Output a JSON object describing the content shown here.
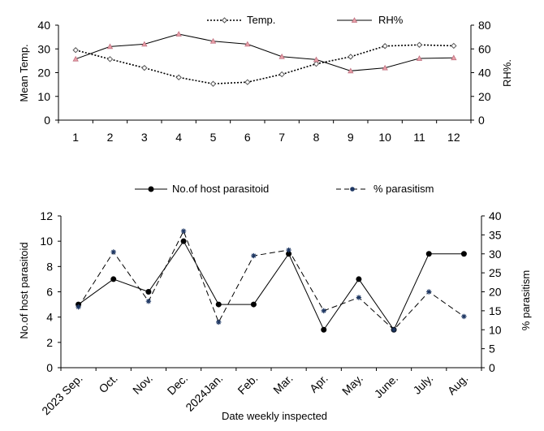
{
  "chart_data": [
    {
      "type": "line",
      "x": [
        1,
        2,
        3,
        4,
        5,
        6,
        7,
        8,
        9,
        10,
        11,
        12
      ],
      "xticks": [
        "1",
        "2",
        "3",
        "4",
        "5",
        "6",
        "7",
        "8",
        "9",
        "10",
        "11",
        "12"
      ],
      "series": [
        {
          "name": "Temp.",
          "axis": "left",
          "style": "dotted",
          "marker": "diamond-open",
          "color": "#000000",
          "values": [
            29.5,
            25.7,
            22,
            18,
            15.3,
            16,
            19.3,
            23.7,
            26.7,
            31.2,
            31.7,
            31.3
          ]
        },
        {
          "name": "RH%",
          "axis": "right",
          "style": "solid",
          "marker": "triangle",
          "color": "#000000",
          "marker_color": "#e8a0a8",
          "values": [
            51.5,
            62,
            64,
            72.5,
            66.5,
            64,
            53.5,
            51,
            41.5,
            44,
            52,
            52.5
          ]
        }
      ],
      "ylabel": "Mean Temp.",
      "y2label": "RH%.",
      "ylim": [
        0,
        40
      ],
      "yticks": [
        0,
        10,
        20,
        30,
        40
      ],
      "y2lim": [
        0,
        80
      ],
      "y2ticks": [
        0,
        20,
        40,
        60,
        80
      ],
      "legend": "top"
    },
    {
      "type": "line",
      "categories": [
        "2023 Sep.",
        "Oct.",
        "Nov.",
        "Dec.",
        "2024Jan.",
        "Feb.",
        "Mar.",
        "Apr.",
        "May.",
        "June.",
        "July.",
        "Aug."
      ],
      "series": [
        {
          "name": "No.of host parasitoid",
          "axis": "left",
          "style": "solid",
          "marker": "circle",
          "color": "#000000",
          "values": [
            5,
            7,
            6,
            10,
            5,
            5,
            9,
            3,
            7,
            3,
            9,
            9
          ]
        },
        {
          "name": "% parasitism",
          "axis": "right",
          "style": "dashed",
          "marker": "star",
          "color": "#000000",
          "marker_color": "#1f3864",
          "values": [
            16,
            30.5,
            17.5,
            36,
            12,
            29.5,
            31,
            15,
            18.5,
            10,
            20,
            13.5
          ]
        }
      ],
      "xlabel": "Date weekly inspected",
      "ylabel": "No.of host  parasitoid",
      "y2label": "% parasitism",
      "ylim": [
        0,
        12
      ],
      "yticks": [
        0,
        2,
        4,
        6,
        8,
        10,
        12
      ],
      "y2lim": [
        0,
        40
      ],
      "y2ticks": [
        0,
        5,
        10,
        15,
        20,
        25,
        30,
        35,
        40
      ],
      "legend": "top"
    }
  ]
}
